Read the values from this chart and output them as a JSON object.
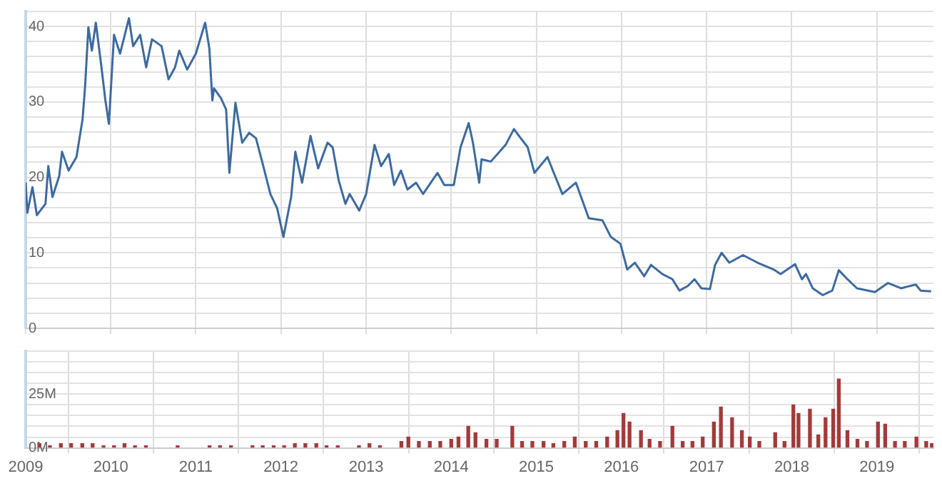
{
  "chart_data": [
    {
      "type": "line",
      "tick_labels": "y",
      "grid": true,
      "xlim": [
        "2009-01-01",
        "2019-09-01"
      ],
      "xticks": [
        "2009",
        "2010",
        "2011",
        "2012",
        "2013",
        "2014",
        "2015",
        "2016",
        "2017",
        "2018",
        "2019"
      ],
      "ylim": [
        0,
        42
      ],
      "yticks": [
        0,
        {
          "value": 2,
          "label": null
        },
        {
          "value": 4,
          "label": null
        },
        {
          "value": 6,
          "label": null
        },
        {
          "value": 8,
          "label": null
        },
        10,
        {
          "value": 12,
          "label": null
        },
        {
          "value": 14,
          "label": null
        },
        {
          "value": 16,
          "label": null
        },
        {
          "value": 18,
          "label": null
        },
        20,
        {
          "value": 22,
          "label": null
        },
        {
          "value": 24,
          "label": null
        },
        {
          "value": 26,
          "label": null
        },
        {
          "value": 28,
          "label": null
        },
        30,
        {
          "value": 32,
          "label": null
        },
        {
          "value": 34,
          "label": null
        },
        {
          "value": 36,
          "label": null
        },
        {
          "value": 38,
          "label": null
        },
        40,
        {
          "value": 42,
          "label": null
        }
      ],
      "x": [
        "2009-01-01",
        "2009-01-08",
        "2009-01-30",
        "2009-02-18",
        "2009-03-27",
        "2009-04-08",
        "2009-04-26",
        "2009-05-25",
        "2009-06-06",
        "2009-07-04",
        "2009-08-07",
        "2009-09-02",
        "2009-09-13",
        "2009-09-27",
        "2009-10-12",
        "2009-10-29",
        "2009-11-21",
        "2009-12-09",
        "2009-12-24",
        "2010-01-15",
        "2010-02-10",
        "2010-03-20",
        "2010-04-07",
        "2010-05-07",
        "2010-06-02",
        "2010-06-27",
        "2010-08-07",
        "2010-09-06",
        "2010-10-04",
        "2010-10-22",
        "2010-11-25",
        "2011-01-01",
        "2011-02-10",
        "2011-02-28",
        "2011-03-13",
        "2011-03-20",
        "2011-04-19",
        "2011-05-11",
        "2011-05-25",
        "2011-06-20",
        "2011-07-19",
        "2011-08-18",
        "2011-09-16",
        "2011-10-15",
        "2011-11-17",
        "2011-12-16",
        "2012-01-12",
        "2012-02-14",
        "2012-03-03",
        "2012-04-01",
        "2012-05-07",
        "2012-06-09",
        "2012-07-19",
        "2012-08-10",
        "2012-09-05",
        "2012-10-04",
        "2012-10-22",
        "2012-12-02",
        "2013-01-01",
        "2013-02-06",
        "2013-03-06",
        "2013-04-08",
        "2013-05-01",
        "2013-05-30",
        "2013-06-27",
        "2013-08-03",
        "2013-09-02",
        "2013-11-03",
        "2013-12-02",
        "2014-01-12",
        "2014-02-10",
        "2014-03-17",
        "2014-04-04",
        "2014-05-01",
        "2014-05-11",
        "2014-06-20",
        "2014-08-22",
        "2014-09-27",
        "2014-10-26",
        "2014-11-25",
        "2014-12-24",
        "2015-02-18",
        "2015-03-17",
        "2015-04-23",
        "2015-06-20",
        "2015-08-14",
        "2015-10-12",
        "2015-11-17",
        "2015-12-28",
        "2016-01-26",
        "2016-02-28",
        "2016-04-08",
        "2016-05-07",
        "2016-06-24",
        "2016-08-07",
        "2016-09-06",
        "2016-10-12",
        "2016-11-10",
        "2016-12-09",
        "2017-01-15",
        "2017-02-06",
        "2017-03-06",
        "2017-04-08",
        "2017-06-06",
        "2017-08-07",
        "2017-10-15",
        "2017-11-14",
        "2018-01-15",
        "2018-02-14",
        "2018-03-03",
        "2018-04-01",
        "2018-05-14",
        "2018-06-24",
        "2018-07-22",
        "2018-08-28",
        "2018-10-08",
        "2018-12-24",
        "2019-02-18",
        "2019-04-15",
        "2019-06-17",
        "2019-07-08",
        "2019-08-22"
      ],
      "series": [
        {
          "color": "#3d6a9e",
          "values": [
            19.3,
            15.3,
            18.7,
            15.0,
            16.5,
            21.5,
            17.4,
            20.2,
            23.4,
            20.9,
            22.7,
            27.7,
            32.1,
            39.9,
            36.8,
            40.5,
            34.9,
            30.2,
            27.1,
            38.9,
            36.4,
            41.1,
            37.4,
            38.9,
            34.6,
            38.3,
            37.4,
            33.0,
            34.6,
            36.8,
            34.3,
            36.4,
            40.5,
            37.1,
            30.2,
            31.8,
            30.5,
            29.0,
            20.6,
            29.9,
            24.6,
            25.9,
            25.2,
            21.8,
            17.8,
            15.9,
            12.1,
            17.4,
            23.4,
            19.3,
            25.5,
            21.2,
            24.6,
            24.0,
            19.6,
            16.5,
            17.8,
            15.6,
            17.8,
            24.3,
            21.5,
            23.1,
            19.0,
            20.9,
            18.4,
            19.3,
            17.8,
            20.6,
            19.0,
            19.0,
            24.0,
            27.2,
            24.6,
            19.3,
            22.4,
            22.1,
            24.3,
            26.4,
            25.2,
            24.0,
            20.6,
            22.7,
            20.6,
            17.8,
            19.3,
            14.6,
            14.3,
            12.1,
            11.2,
            7.8,
            8.7,
            6.9,
            8.4,
            7.2,
            6.5,
            5.0,
            5.6,
            6.5,
            5.3,
            5.2,
            8.4,
            10.0,
            8.7,
            9.7,
            8.7,
            7.8,
            7.2,
            8.5,
            6.5,
            7.2,
            5.3,
            4.4,
            5.0,
            7.7,
            6.5,
            5.3,
            4.8,
            6.0,
            5.3,
            5.8,
            5.0,
            4.9
          ]
        }
      ]
    },
    {
      "type": "bar",
      "grid": true,
      "xlim": [
        "2009-01-01",
        "2019-09-01"
      ],
      "xticks": [
        "2009",
        "2010",
        "2011",
        "2012",
        "2013",
        "2014",
        "2015",
        "2016",
        "2017",
        "2018",
        "2019"
      ],
      "ylim": [
        0,
        45
      ],
      "yticks": [
        {
          "value": 0,
          "label": "0M"
        },
        {
          "value": 5,
          "label": null
        },
        {
          "value": 10,
          "label": null
        },
        {
          "value": 15,
          "label": null
        },
        {
          "value": 20,
          "label": null
        },
        {
          "value": 25,
          "label": "25M"
        },
        {
          "value": 30,
          "label": null
        },
        {
          "value": 35,
          "label": null
        },
        {
          "value": 40,
          "label": null
        },
        {
          "value": 45,
          "label": null
        }
      ],
      "x": [
        "2009-03-01",
        "2009-04-15",
        "2009-06-01",
        "2009-07-15",
        "2009-09-01",
        "2009-10-15",
        "2009-12-01",
        "2010-01-15",
        "2010-03-01",
        "2010-04-15",
        "2010-06-01",
        "2010-10-15",
        "2011-03-01",
        "2011-04-15",
        "2011-06-01",
        "2011-09-01",
        "2011-10-15",
        "2011-12-01",
        "2012-01-15",
        "2012-03-01",
        "2012-04-15",
        "2012-06-01",
        "2012-07-15",
        "2012-09-01",
        "2012-12-01",
        "2013-01-15",
        "2013-03-01",
        "2013-06-01",
        "2013-07-01",
        "2013-08-15",
        "2013-10-01",
        "2013-11-15",
        "2014-01-01",
        "2014-02-01",
        "2014-03-15",
        "2014-04-15",
        "2014-06-01",
        "2014-07-15",
        "2014-09-20",
        "2014-11-01",
        "2014-12-15",
        "2015-02-01",
        "2015-03-15",
        "2015-05-01",
        "2015-06-15",
        "2015-08-01",
        "2015-09-15",
        "2015-11-01",
        "2015-12-15",
        "2016-01-10",
        "2016-02-05",
        "2016-03-25",
        "2016-05-01",
        "2016-06-15",
        "2016-08-07",
        "2016-09-20",
        "2016-11-01",
        "2016-12-15",
        "2017-02-01",
        "2017-03-03",
        "2017-04-20",
        "2017-06-01",
        "2017-07-05",
        "2017-08-15",
        "2017-10-22",
        "2017-12-01",
        "2018-01-08",
        "2018-01-30",
        "2018-03-20",
        "2018-04-25",
        "2018-05-26",
        "2018-06-28",
        "2018-07-22",
        "2018-08-28",
        "2018-10-10",
        "2018-11-20",
        "2019-01-06",
        "2019-02-06",
        "2019-03-20",
        "2019-05-01",
        "2019-06-20",
        "2019-08-01",
        "2019-08-25"
      ],
      "series": [
        {
          "color": "#a33a3a",
          "values": [
            2,
            1,
            2,
            2,
            2,
            2,
            1,
            1,
            2,
            1,
            1,
            1,
            1,
            1,
            1,
            1,
            1,
            1,
            1,
            2,
            2,
            2,
            1,
            1,
            1,
            2,
            1,
            3,
            5,
            3,
            3,
            3,
            4,
            5,
            10,
            7,
            4,
            4,
            10,
            3,
            3,
            3,
            2,
            3,
            5,
            3,
            3,
            5,
            8,
            16,
            12,
            8,
            4,
            3,
            10,
            3,
            3,
            5,
            12,
            19,
            14,
            8,
            5,
            3,
            7,
            3,
            20,
            16,
            18,
            6,
            14,
            18,
            32,
            8,
            4,
            3,
            12,
            11,
            3,
            3,
            5,
            3,
            2
          ]
        }
      ]
    }
  ]
}
